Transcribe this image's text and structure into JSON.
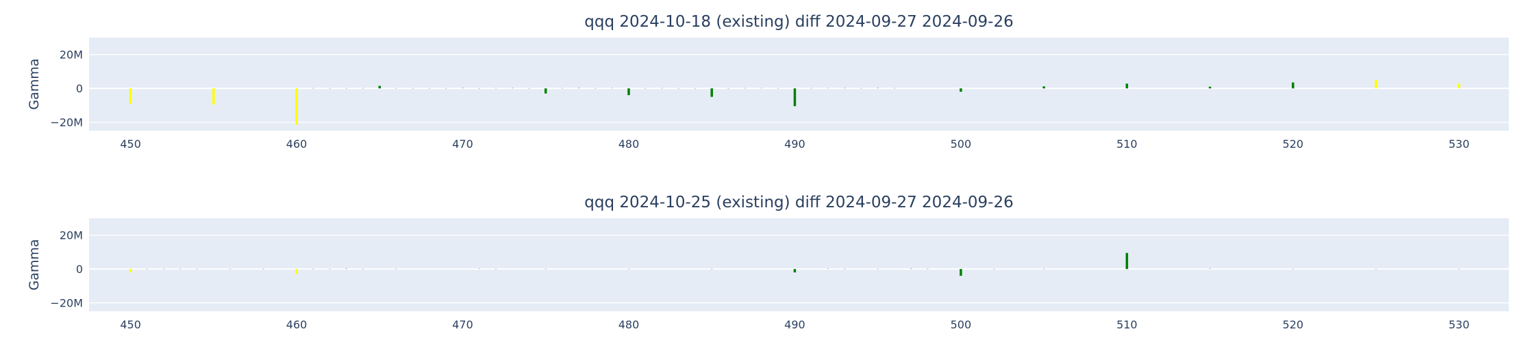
{
  "colors": {
    "plot_bg": "#E5ECF6",
    "grid": "#ffffff",
    "text": "#2a3f5f",
    "bar_yellow": "#FFFF00",
    "bar_green": "#008000",
    "bar_faint": "#B0C4DE"
  },
  "chart_data": [
    {
      "type": "bar",
      "title": "qqq 2024-10-18 (existing) diff 2024-09-27 2024-09-26",
      "xlabel": "",
      "ylabel": "Gamma",
      "xlim": [
        447.5,
        533
      ],
      "ylim": [
        -25000000,
        30000000
      ],
      "xticks": [
        450,
        460,
        470,
        480,
        490,
        500,
        510,
        520,
        530
      ],
      "yticks": [
        {
          "value": 20000000,
          "label": "20M"
        },
        {
          "value": 0,
          "label": "0"
        },
        {
          "value": -20000000,
          "label": "−20M"
        }
      ],
      "grid": true,
      "legend": "none",
      "series": [
        {
          "color": "#FFFF00",
          "x": [
            450,
            455,
            460,
            525,
            530
          ],
          "values": [
            -9000000,
            -9500000,
            -21500000,
            5000000,
            3000000
          ]
        },
        {
          "color": "#008000",
          "x": [
            465,
            475,
            480,
            485,
            490,
            500,
            505,
            510,
            515,
            520
          ],
          "values": [
            1500000,
            -3000000,
            -4000000,
            -5000000,
            -10500000,
            -2000000,
            1200000,
            2800000,
            1000000,
            3500000
          ]
        },
        {
          "color": "#B0C4DE",
          "x": [
            461,
            462,
            463,
            464,
            466,
            467,
            468,
            469,
            470,
            471,
            472,
            473,
            474,
            476,
            477,
            478,
            479,
            481,
            482,
            483,
            484,
            486,
            487,
            488,
            489,
            491,
            492,
            493,
            494,
            495,
            496
          ],
          "values": [
            300000,
            200000,
            200000,
            300000,
            200000,
            200000,
            200000,
            200000,
            600000,
            200000,
            300000,
            500000,
            200000,
            300000,
            600000,
            200000,
            400000,
            200000,
            300000,
            200000,
            200000,
            200000,
            300000,
            400000,
            200000,
            300000,
            400000,
            500000,
            200000,
            600000,
            300000
          ]
        }
      ]
    },
    {
      "type": "bar",
      "title": "qqq 2024-10-25 (existing) diff 2024-09-27 2024-09-26",
      "xlabel": "",
      "ylabel": "Gamma",
      "xlim": [
        447.5,
        533
      ],
      "ylim": [
        -25000000,
        30000000
      ],
      "xticks": [
        450,
        460,
        470,
        480,
        490,
        500,
        510,
        520,
        530
      ],
      "yticks": [
        {
          "value": 20000000,
          "label": "20M"
        },
        {
          "value": 0,
          "label": "0"
        },
        {
          "value": -20000000,
          "label": "−20M"
        }
      ],
      "grid": true,
      "legend": "none",
      "series": [
        {
          "color": "#FFFF00",
          "x": [
            450,
            460
          ],
          "values": [
            -2000000,
            -3000000
          ]
        },
        {
          "color": "#008000",
          "x": [
            490,
            500,
            510
          ],
          "values": [
            -2000000,
            -4000000,
            9500000
          ]
        },
        {
          "color": "#B0C4DE",
          "x": [
            451,
            452,
            453,
            454,
            456,
            458,
            461,
            462,
            463,
            464,
            466,
            471,
            472,
            475,
            480,
            485,
            492,
            493,
            495,
            497,
            498,
            502,
            505,
            515,
            520,
            525,
            530
          ],
          "values": [
            300000,
            200000,
            200000,
            300000,
            200000,
            200000,
            300000,
            200000,
            500000,
            200000,
            200000,
            400000,
            200000,
            200000,
            300000,
            200000,
            400000,
            300000,
            300000,
            500000,
            300000,
            200000,
            300000,
            400000,
            300000,
            200000,
            300000
          ]
        }
      ]
    }
  ]
}
